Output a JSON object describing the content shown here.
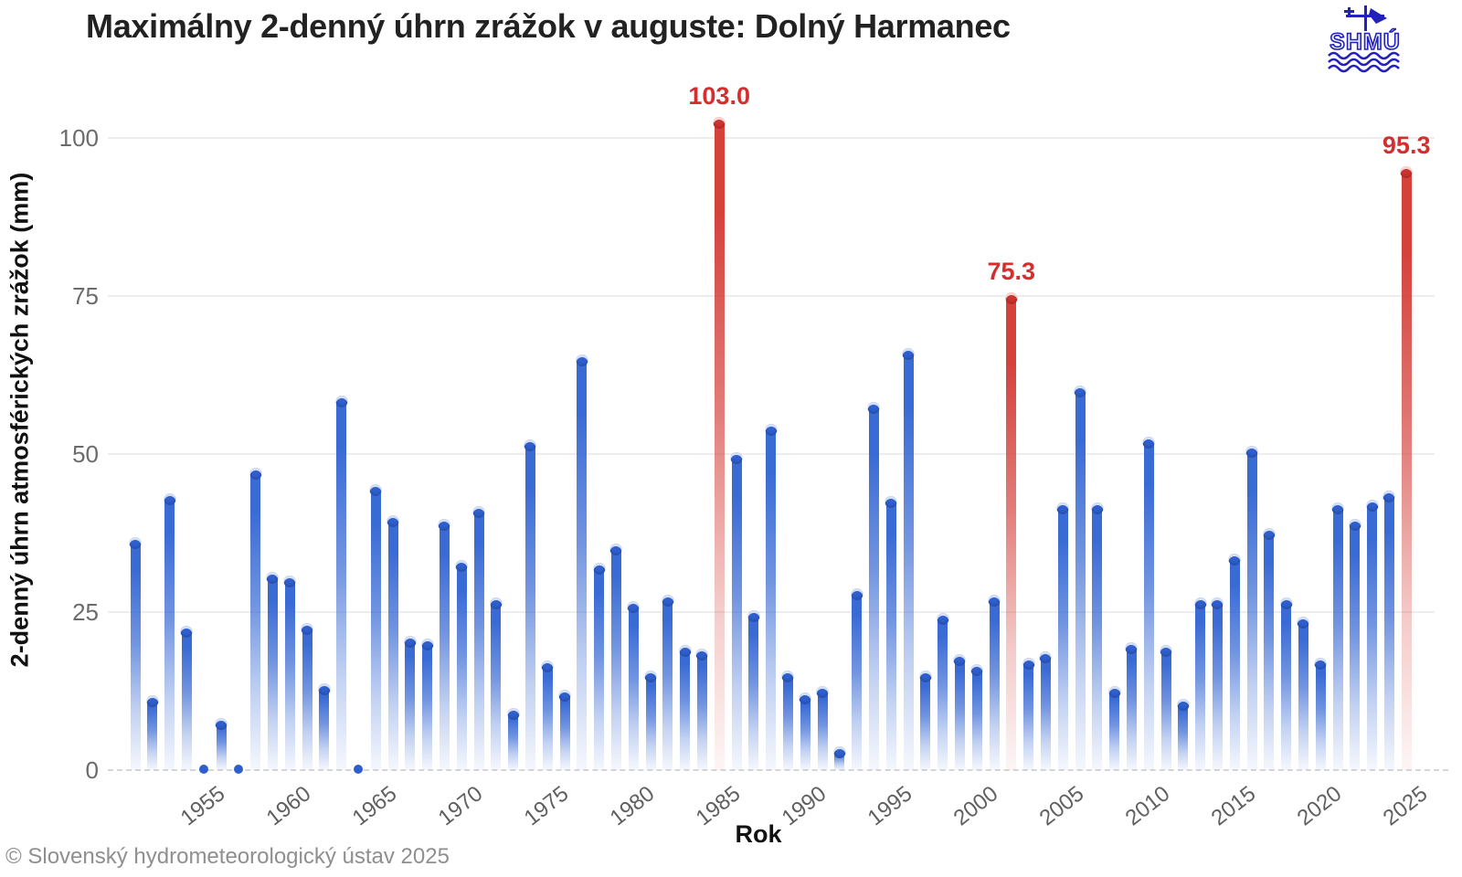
{
  "header": {
    "title": "Maximálny 2-denný úhrn zrážok v auguste: Dolný Harmanec",
    "logo_text": "SHMÚ"
  },
  "footer": {
    "copyright": "© Slovenský hydrometeorologický ústav 2025"
  },
  "chart_data": {
    "type": "bar",
    "title": "Maximálny 2-denný úhrn zrážok v auguste: Dolný Harmanec",
    "xlabel": "Rok",
    "ylabel": "2-denný úhrn atmosférických zrážok (mm)",
    "ylim": [
      0,
      107
    ],
    "yticks": [
      0,
      25,
      50,
      75,
      100
    ],
    "xticks": [
      1955,
      1960,
      1965,
      1970,
      1975,
      1980,
      1985,
      1990,
      1995,
      2000,
      2005,
      2010,
      2015,
      2020,
      2025
    ],
    "grid": "horizontal",
    "legend": "none",
    "years": [
      1951,
      1952,
      1953,
      1954,
      1955,
      1956,
      1957,
      1958,
      1959,
      1960,
      1961,
      1962,
      1963,
      1964,
      1965,
      1966,
      1967,
      1968,
      1969,
      1970,
      1971,
      1972,
      1973,
      1974,
      1975,
      1976,
      1977,
      1978,
      1979,
      1980,
      1981,
      1982,
      1983,
      1984,
      1985,
      1986,
      1987,
      1988,
      1989,
      1990,
      1991,
      1992,
      1993,
      1994,
      1995,
      1996,
      1997,
      1998,
      1999,
      2000,
      2001,
      2002,
      2003,
      2004,
      2005,
      2006,
      2007,
      2008,
      2009,
      2010,
      2011,
      2012,
      2013,
      2014,
      2015,
      2016,
      2017,
      2018,
      2019,
      2020,
      2021,
      2022,
      2023,
      2024,
      2025
    ],
    "values": [
      36.5,
      11.5,
      43.5,
      22.5,
      0,
      8,
      0,
      47.5,
      31,
      30.5,
      23,
      13.5,
      59,
      0,
      45,
      40,
      21,
      20.5,
      39.5,
      33,
      41.5,
      27,
      9.5,
      52,
      17,
      12.5,
      65.5,
      32.5,
      35.5,
      26.5,
      15.5,
      27.5,
      19.5,
      19,
      103.0,
      50,
      25,
      54.5,
      15.5,
      12,
      13,
      3.5,
      28.5,
      58,
      43,
      66.5,
      15.5,
      24.5,
      18,
      16.5,
      27.5,
      75.3,
      17.5,
      18.5,
      42,
      60.5,
      42,
      13,
      20,
      52.5,
      19.5,
      11,
      27,
      27,
      34,
      51,
      38,
      27,
      24,
      17.5,
      42,
      39.5,
      42.5,
      44,
      95.3
    ],
    "highlights": [
      {
        "year": 1985,
        "value": 103.0,
        "label": "103.0"
      },
      {
        "year": 2002,
        "value": 75.3,
        "label": "75.3"
      },
      {
        "year": 2025,
        "value": 95.3,
        "label": "95.3"
      }
    ],
    "colors": {
      "bar": "#3a6bd5",
      "bar_cap": "#2f5fce",
      "highlight_bar": "#d5413b",
      "highlight_cap": "#cd332f",
      "highlight_label": "#d32f2f",
      "gridline": "#ededed",
      "zero_line": "#d6d6d6",
      "tick_text": "#606060",
      "title_text": "#222222",
      "footer_text": "#8f8f8f",
      "logo_blue": "#2222bb"
    }
  }
}
